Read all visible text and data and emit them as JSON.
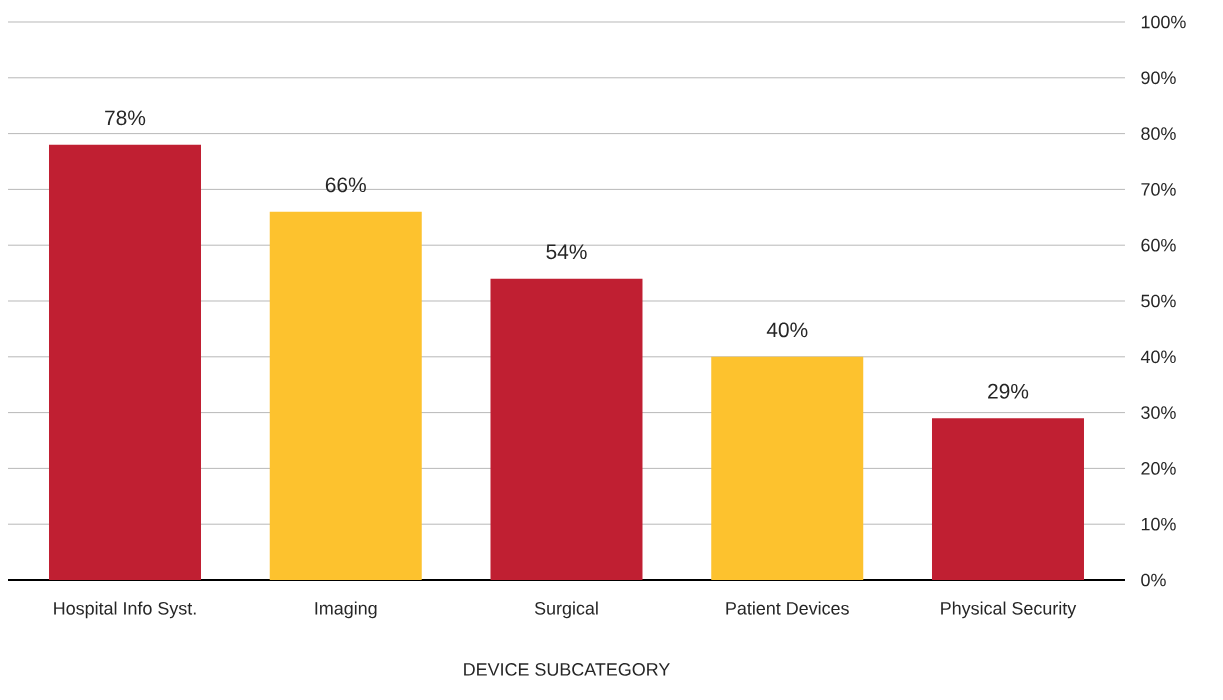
{
  "chart_data": {
    "type": "bar",
    "xlabel": "DEVICE SUBCATEGORY",
    "categories": [
      "Hospital Info Syst.",
      "Imaging",
      "Surgical",
      "Patient Devices",
      "Physical Security"
    ],
    "values": [
      78,
      66,
      54,
      40,
      29
    ],
    "value_labels": [
      "78%",
      "66%",
      "54%",
      "40%",
      "29%"
    ],
    "colors": [
      "#c01f32",
      "#fdc22e",
      "#c01f32",
      "#fdc22e",
      "#c01f32"
    ],
    "ylim": [
      0,
      100
    ],
    "yticks": [
      {
        "value": 0,
        "label": "0%"
      },
      {
        "value": 10,
        "label": "10%"
      },
      {
        "value": 20,
        "label": "20%"
      },
      {
        "value": 30,
        "label": "30%"
      },
      {
        "value": 40,
        "label": "40%"
      },
      {
        "value": 50,
        "label": "50%"
      },
      {
        "value": 60,
        "label": "60%"
      },
      {
        "value": 70,
        "label": "70%"
      },
      {
        "value": 80,
        "label": "80%"
      },
      {
        "value": 90,
        "label": "90%"
      },
      {
        "value": 100,
        "label": "100%"
      }
    ],
    "grid": "y"
  }
}
